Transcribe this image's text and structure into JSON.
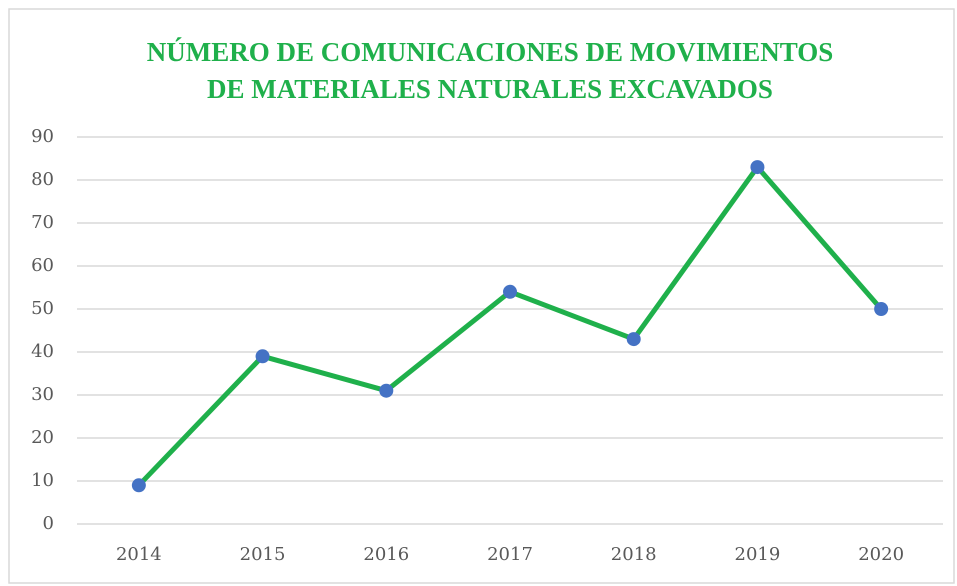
{
  "chart_data": {
    "type": "line",
    "title": [
      "NÚMERO DE COMUNICACIONES DE MOVIMIENTOS",
      "DE MATERIALES NATURALES  EXCAVADOS"
    ],
    "categories": [
      "2014",
      "2015",
      "2016",
      "2017",
      "2018",
      "2019",
      "2020"
    ],
    "series": [
      {
        "name": null,
        "color": "#1fb04b",
        "marker_color": "#4472c4",
        "values": [
          9,
          39,
          31,
          54,
          43,
          83,
          50
        ]
      }
    ],
    "ylim": [
      0,
      90
    ],
    "yticks": [
      0,
      10,
      20,
      30,
      40,
      50,
      60,
      70,
      80,
      90
    ],
    "grid": true
  }
}
